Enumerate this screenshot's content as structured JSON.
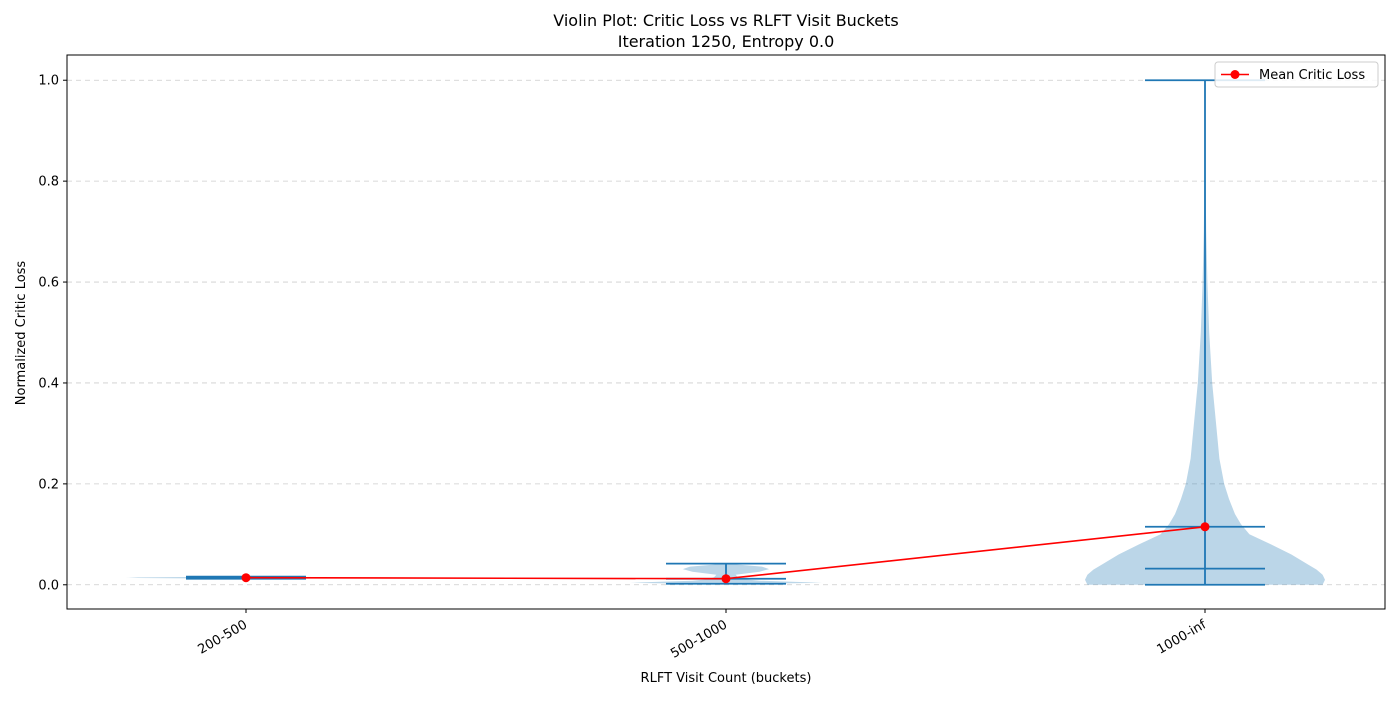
{
  "chart_data": {
    "type": "violin",
    "title": "Violin Plot: Critic Loss vs RLFT Visit Buckets",
    "subtitle": "Iteration 1250, Entropy 0.0",
    "xlabel": "RLFT Visit Count (buckets)",
    "ylabel": "Normalized Critic Loss",
    "categories": [
      "200-500",
      "500-1000",
      "1000-inf"
    ],
    "ylim": [
      -0.048,
      1.05
    ],
    "yticks": [
      0.0,
      0.2,
      0.4,
      0.6,
      0.8,
      1.0
    ],
    "ytick_labels": [
      "0.0",
      "0.2",
      "0.4",
      "0.6",
      "0.8",
      "1.0"
    ],
    "grid": "y-dashed",
    "legend_position": "top-right",
    "violins": [
      {
        "category": "200-500",
        "min": 0.012,
        "median": 0.014,
        "max": 0.016,
        "density": [
          [
            0.012,
            0.05
          ],
          [
            0.0135,
            0.9
          ],
          [
            0.0145,
            1.0
          ],
          [
            0.0155,
            0.5
          ],
          [
            0.016,
            0.05
          ]
        ]
      },
      {
        "category": "500-1000",
        "min": 0.002,
        "median": 0.012,
        "max": 0.042,
        "density": [
          [
            0.002,
            0.3
          ],
          [
            0.004,
            0.8
          ],
          [
            0.006,
            0.55
          ],
          [
            0.008,
            0.28
          ],
          [
            0.011,
            0.15
          ],
          [
            0.015,
            0.1
          ],
          [
            0.02,
            0.08
          ],
          [
            0.026,
            0.28
          ],
          [
            0.031,
            0.36
          ],
          [
            0.036,
            0.3
          ],
          [
            0.04,
            0.1
          ],
          [
            0.042,
            0.02
          ]
        ]
      },
      {
        "category": "1000-inf",
        "min": 0.0,
        "median": 0.032,
        "max": 1.0,
        "density": [
          [
            0.0,
            0.98
          ],
          [
            0.01,
            1.0
          ],
          [
            0.02,
            0.98
          ],
          [
            0.03,
            0.93
          ],
          [
            0.04,
            0.86
          ],
          [
            0.06,
            0.72
          ],
          [
            0.08,
            0.55
          ],
          [
            0.1,
            0.37
          ],
          [
            0.12,
            0.3
          ],
          [
            0.14,
            0.25
          ],
          [
            0.17,
            0.2
          ],
          [
            0.2,
            0.16
          ],
          [
            0.25,
            0.12
          ],
          [
            0.3,
            0.1
          ],
          [
            0.35,
            0.08
          ],
          [
            0.4,
            0.06
          ],
          [
            0.5,
            0.035
          ],
          [
            0.6,
            0.02
          ],
          [
            0.7,
            0.01
          ],
          [
            0.8,
            0.005
          ],
          [
            0.9,
            0.002
          ],
          [
            1.0,
            0.0
          ]
        ]
      }
    ],
    "series": [
      {
        "name": "Mean Critic Loss",
        "color": "#ff0000",
        "x": [
          "200-500",
          "500-1000",
          "1000-inf"
        ],
        "values": [
          0.014,
          0.012,
          0.115
        ]
      }
    ],
    "colors": {
      "violin_fill": "#1f77b4",
      "violin_opacity": 0.3,
      "whisker": "#1f77b4",
      "mean_line": "#ff0000",
      "grid": "#cccccc"
    }
  }
}
